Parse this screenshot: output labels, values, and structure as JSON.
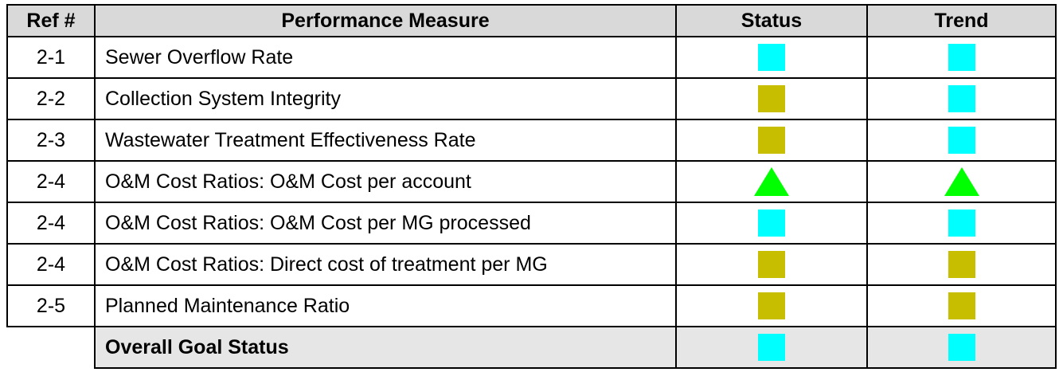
{
  "table": {
    "header": [
      "Ref #",
      "Performance Measure",
      "Status",
      "Trend"
    ],
    "rows": [
      {
        "ref": "2-1",
        "measure": "Sewer Overflow Rate",
        "status": {
          "shape": "square",
          "color": "#00ffff"
        },
        "trend": {
          "shape": "square",
          "color": "#00ffff"
        }
      },
      {
        "ref": "2-2",
        "measure": "Collection System Integrity",
        "status": {
          "shape": "square",
          "color": "#c8be00"
        },
        "trend": {
          "shape": "square",
          "color": "#00ffff"
        }
      },
      {
        "ref": "2-3",
        "measure": "Wastewater Treatment Effectiveness Rate",
        "status": {
          "shape": "square",
          "color": "#c8be00"
        },
        "trend": {
          "shape": "square",
          "color": "#00ffff"
        }
      },
      {
        "ref": "2-4",
        "measure": "O&M Cost Ratios: O&M Cost per account",
        "status": {
          "shape": "triangle",
          "color": "#00ff00"
        },
        "trend": {
          "shape": "triangle",
          "color": "#00ff00"
        }
      },
      {
        "ref": "2-4",
        "measure": "O&M Cost Ratios: O&M Cost per MG processed",
        "status": {
          "shape": "square",
          "color": "#00ffff"
        },
        "trend": {
          "shape": "square",
          "color": "#00ffff"
        }
      },
      {
        "ref": "2-4",
        "measure": "O&M Cost Ratios: Direct cost of treatment per MG",
        "status": {
          "shape": "square",
          "color": "#c8be00"
        },
        "trend": {
          "shape": "square",
          "color": "#c8be00"
        }
      },
      {
        "ref": "2-5",
        "measure": "Planned Maintenance Ratio",
        "status": {
          "shape": "square",
          "color": "#c8be00"
        },
        "trend": {
          "shape": "square",
          "color": "#c8be00"
        }
      }
    ],
    "overall": {
      "measure": "Overall Goal Status",
      "status": {
        "shape": "square",
        "color": "#00ffff"
      },
      "trend": {
        "shape": "square",
        "color": "#00ffff"
      }
    }
  }
}
